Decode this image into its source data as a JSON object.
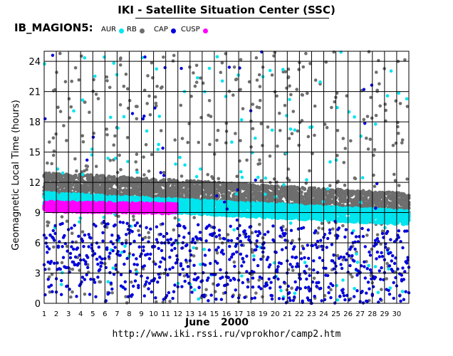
{
  "header": {
    "title": "IKI - Satellite Situation Center (SSC)",
    "satellite": "IB_MAGION5:",
    "legend": [
      {
        "label": "AUR",
        "color": "#00e5ee"
      },
      {
        "label": "RB",
        "color": "#6e6e6e"
      },
      {
        "label": "CAP",
        "color": "#0000dd"
      },
      {
        "label": "CUSP",
        "color": "#ff00ff"
      }
    ]
  },
  "footer": {
    "month": "June",
    "year": "2000",
    "url": "http://www.iki.rssi.ru/vprokhor/camp2.htm"
  },
  "chart_data": {
    "type": "scatter",
    "ylabel": "Geomagnetic Local Time (hours)",
    "xlim": [
      1,
      31
    ],
    "ylim": [
      0,
      25
    ],
    "yticks": [
      0,
      3,
      6,
      9,
      12,
      15,
      18,
      21,
      24
    ],
    "xticks": [
      1,
      2,
      3,
      4,
      5,
      6,
      7,
      8,
      9,
      10,
      11,
      12,
      13,
      14,
      15,
      16,
      17,
      18,
      19,
      20,
      21,
      22,
      23,
      24,
      25,
      26,
      27,
      28,
      29,
      30
    ],
    "grid": true,
    "legend_position": "top-left",
    "series": [
      {
        "name": "RB",
        "color": "#6e6e6e",
        "band": {
          "day_start": 1,
          "day_end": 31,
          "center_start": 11.8,
          "center_end": 9.7,
          "halfwidth": 1.2
        }
      },
      {
        "name": "AUR",
        "color": "#00e5ee",
        "band": {
          "day_start": 1,
          "day_end": 31,
          "center_start": 10.3,
          "center_end": 8.5,
          "halfwidth": 0.7
        }
      },
      {
        "name": "CUSP",
        "color": "#ff00ff",
        "band": {
          "day_start": 1,
          "day_end": 12,
          "center_start": 9.6,
          "center_end": 9.4,
          "halfwidth": 0.5
        }
      },
      {
        "name": "CAP",
        "color": "#0000dd",
        "band": {
          "day_start": 1,
          "day_end": 31,
          "center_start": 4.5,
          "center_end": 3.5,
          "halfwidth": 3.8
        }
      }
    ]
  }
}
